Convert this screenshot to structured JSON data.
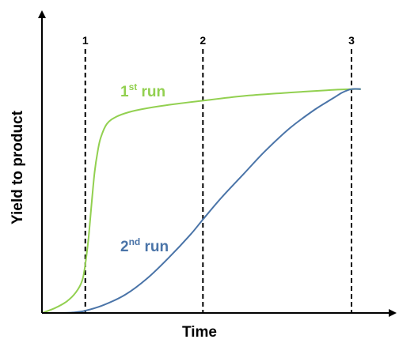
{
  "chart_data": {
    "type": "line",
    "title": "",
    "xlabel": "Time",
    "ylabel": "Yield to product",
    "xlim": [
      0,
      100
    ],
    "ylim": [
      0,
      100
    ],
    "grid": false,
    "tick_labels": false,
    "markers": [
      {
        "label": "1",
        "x": 14
      },
      {
        "label": "2",
        "x": 52
      },
      {
        "label": "3",
        "x": 100
      }
    ],
    "series": [
      {
        "name": "1st run",
        "label_main": "1",
        "label_sup": "st",
        "label_tail": " run",
        "color": "#92d050",
        "x": [
          0,
          4,
          8,
          11,
          13,
          14,
          15,
          16,
          17,
          18,
          19,
          21,
          24,
          28,
          33,
          40,
          52,
          65,
          80,
          92,
          100,
          103
        ],
        "y": [
          0,
          2,
          5,
          9,
          14,
          21,
          32,
          47,
          61,
          70,
          76,
          82,
          85,
          87,
          88.5,
          90,
          92,
          94,
          95.5,
          96.5,
          97,
          97
        ]
      },
      {
        "name": "2nd run",
        "label_main": "2",
        "label_sup": "nd",
        "label_tail": " run",
        "color": "#4a74a8",
        "x": [
          0,
          5,
          10,
          14,
          20,
          27,
          34,
          41,
          48,
          52,
          58,
          65,
          72,
          80,
          88,
          94,
          97,
          100,
          103
        ],
        "y": [
          0,
          0,
          0.2,
          1,
          3.5,
          8,
          15,
          24,
          34,
          40.5,
          50,
          60,
          70,
          80,
          88,
          93,
          95.5,
          97,
          97
        ]
      }
    ]
  }
}
